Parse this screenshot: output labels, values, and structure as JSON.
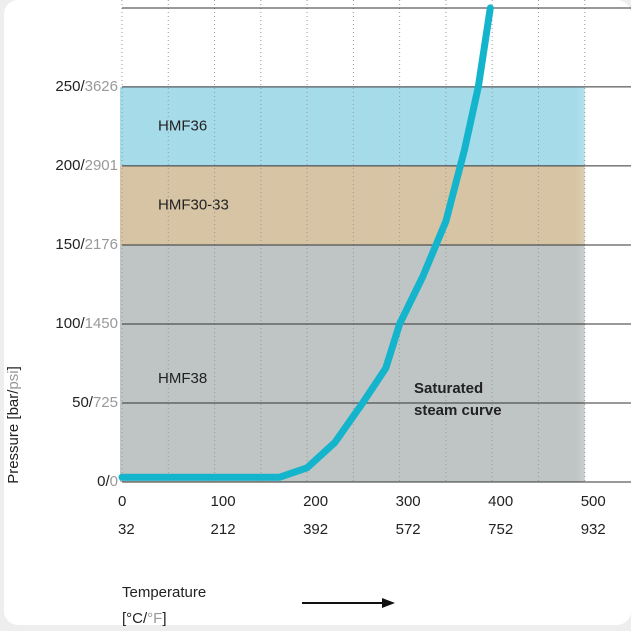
{
  "chart_data": {
    "type": "line",
    "ylabel": [
      "Pressure [bar/",
      "psi",
      "]"
    ],
    "xlabel": [
      "Temperature",
      "[°C/",
      "°F",
      "]"
    ],
    "tick_separator": "/",
    "xlim": [
      0,
      550
    ],
    "xticks": [
      0,
      100,
      200,
      300,
      400,
      500
    ],
    "xticks_fahrenheit": [
      32,
      212,
      392,
      572,
      752,
      932
    ],
    "xgrid_minor": [
      50,
      150,
      250,
      350,
      450
    ],
    "ylim": [
      0,
      305
    ],
    "yticks": [
      0,
      50,
      100,
      150,
      200,
      250
    ],
    "yticks_psi": [
      0,
      725,
      1450,
      2176,
      2901,
      3626
    ],
    "bands": [
      {
        "name": "HMF38",
        "from": 0,
        "to": 150,
        "xto": 500,
        "color": "#bfc4c4"
      },
      {
        "name": "HMF30-33",
        "from": 150,
        "to": 200,
        "xto": 500,
        "color": "#d6c4a4"
      },
      {
        "name": "HMF36",
        "from": 200,
        "to": 250,
        "xto": 500,
        "color": "#a6dbea"
      }
    ],
    "series": [
      {
        "name": "Saturated steam curve",
        "color": "#14b4cc",
        "x": [
          0,
          170,
          200,
          230,
          260,
          285,
          300,
          325,
          350,
          370,
          385,
          398
        ],
        "values": [
          3,
          3,
          9,
          25,
          50,
          72,
          100,
          130,
          165,
          210,
          250,
          300
        ]
      }
    ],
    "annotation": [
      "Saturated",
      "steam curve"
    ]
  }
}
